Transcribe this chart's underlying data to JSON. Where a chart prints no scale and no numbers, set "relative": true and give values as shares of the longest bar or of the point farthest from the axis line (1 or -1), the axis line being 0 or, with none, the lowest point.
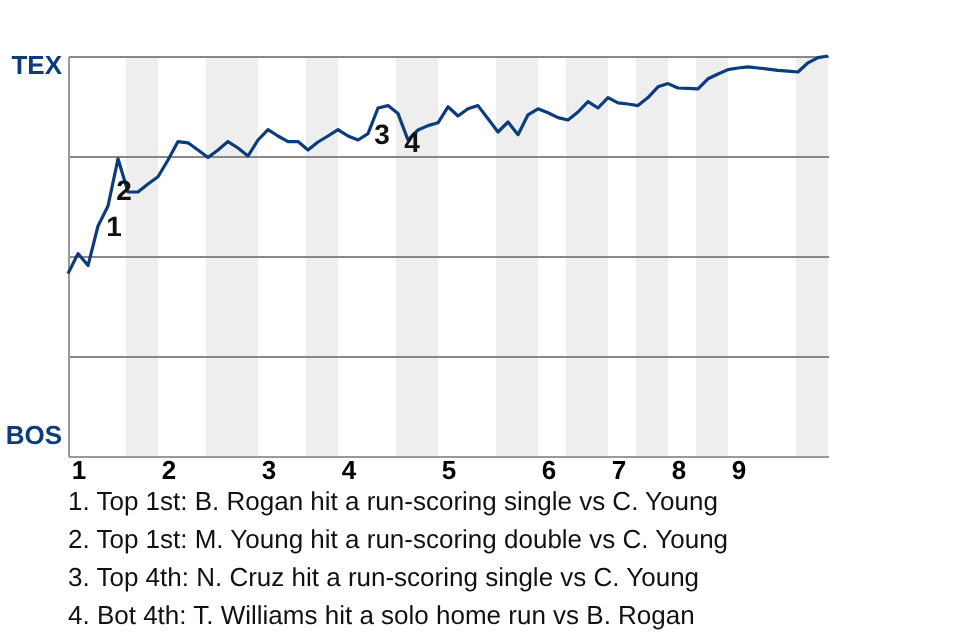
{
  "chart_data": {
    "type": "line",
    "relative": true,
    "categories": [
      null,
      "1",
      null,
      null,
      null,
      null,
      null,
      null,
      null,
      null,
      "2",
      null,
      null,
      null,
      null,
      null,
      null,
      null,
      null,
      null,
      "3",
      null,
      null,
      null,
      null,
      null,
      null,
      null,
      "4",
      null,
      null,
      null,
      null,
      null,
      null,
      null,
      null,
      null,
      "5",
      null,
      null,
      null,
      null,
      null,
      null,
      null,
      null,
      null,
      "6",
      null,
      null,
      null,
      null,
      null,
      null,
      "7",
      null,
      null,
      null,
      null,
      null,
      "8",
      null,
      null,
      null,
      null,
      null,
      "9",
      null,
      null,
      null,
      null,
      null,
      null,
      null,
      null,
      null
    ],
    "series": [
      {
        "color": "#0b3c7c",
        "values": [
          0.456,
          0.506,
          0.476,
          0.575,
          0.625,
          0.743,
          0.66,
          0.66,
          0.68,
          0.698,
          0.74,
          0.786,
          0.783,
          0.765,
          0.746,
          0.765,
          0.786,
          0.77,
          0.75,
          0.79,
          0.816,
          0.8,
          0.786,
          0.786,
          0.765,
          0.785,
          0.8,
          0.816,
          0.8,
          0.79,
          0.806,
          0.87,
          0.876,
          0.856,
          0.79,
          0.815,
          0.826,
          0.833,
          0.873,
          0.85,
          0.868,
          0.876,
          0.843,
          0.81,
          0.835,
          0.803,
          0.853,
          0.868,
          0.858,
          0.846,
          0.84,
          0.86,
          0.886,
          0.87,
          0.896,
          0.883,
          0.88,
          0.876,
          0.896,
          0.923,
          0.931,
          0.92,
          0.919,
          0.918,
          0.943,
          0.955,
          0.966,
          0.97,
          0.973,
          0.97,
          0.967,
          0.964,
          0.962,
          0.96,
          0.983,
          0.996,
          1
        ]
      }
    ],
    "grid": "y",
    "marker": "none",
    "line_style": "solid",
    "annotations": [
      "1",
      "2",
      "3",
      "4",
      "TEX",
      "BOS",
      "1. Top 1st: B. Rogan hit a run-scoring single vs C. Young",
      "2. Top 1st: M. Young hit a run-scoring double vs C. Young",
      "3. Top 4th: N. Cruz hit a run-scoring single vs C. Young",
      "4. Bot 4th: T. Williams hit a solo home run vs B. Rogan"
    ]
  }
}
